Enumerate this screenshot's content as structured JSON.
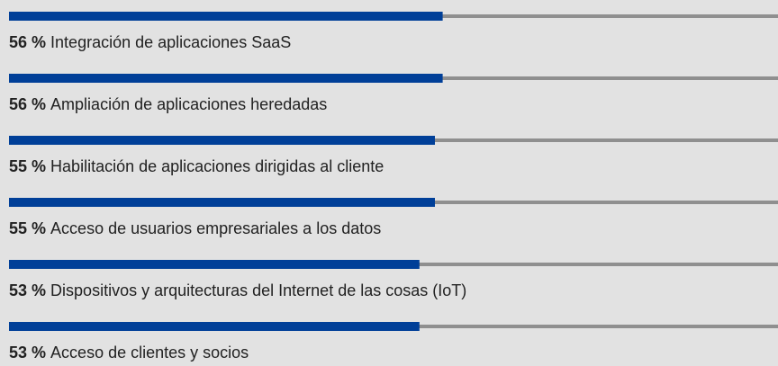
{
  "chart_data": {
    "type": "bar",
    "categories": [
      "Integración de aplicaciones SaaS",
      "Ampliación de aplicaciones heredadas",
      "Habilitación de aplicaciones dirigidas al cliente",
      "Acceso de usuarios empresariales a los datos",
      "Dispositivos y arquitecturas del Internet de las cosas (IoT)",
      "Acceso de clientes y socios"
    ],
    "values": [
      56,
      56,
      55,
      55,
      53,
      53
    ],
    "value_labels": [
      "56 %",
      "56 %",
      "55 %",
      "55 %",
      "53 %",
      "53 %"
    ],
    "color": "#003f98",
    "track_color": "#8f8f8f",
    "xlim": [
      0,
      100
    ]
  }
}
